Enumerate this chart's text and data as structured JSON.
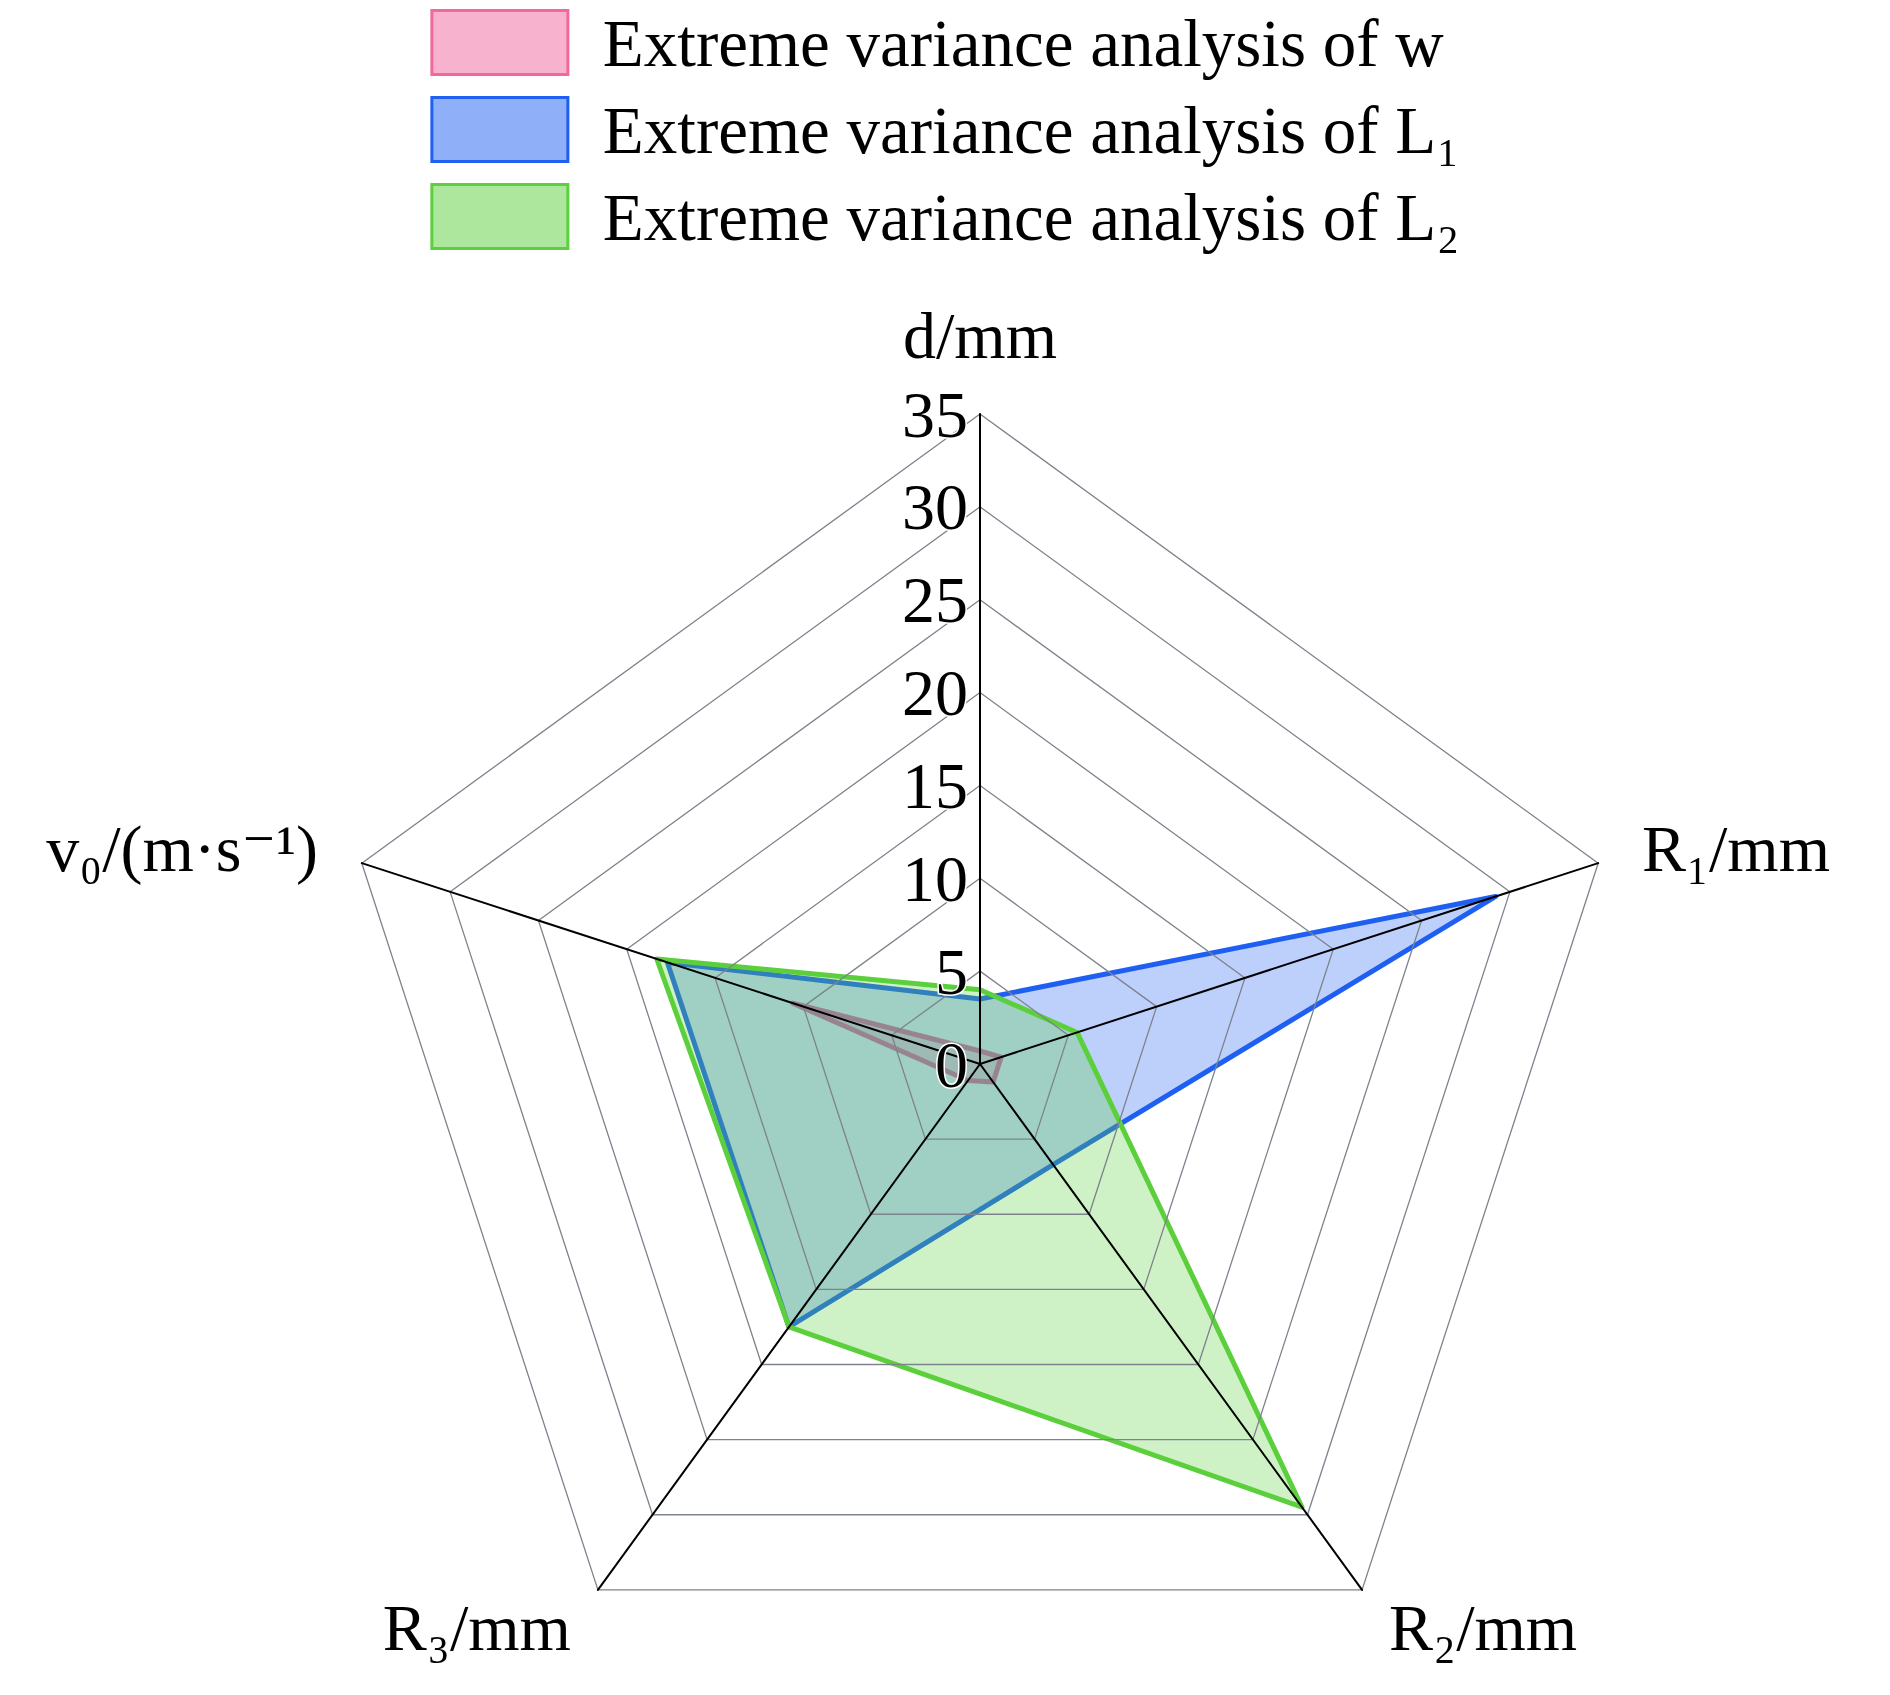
{
  "chart_data": {
    "type": "radar",
    "categories": [
      "d/mm",
      "R₁/mm",
      "R₂/mm",
      "R₃/mm",
      "v₀/(m·s⁻¹)"
    ],
    "series": [
      {
        "name": "Extreme variance analysis of w",
        "color": "#f0689c",
        "values": [
          0.7,
          1.2,
          1.2,
          1.1,
          10.6
        ]
      },
      {
        "name": "Extreme variance analysis of L₁",
        "color": "#1f60f2",
        "values": [
          3.5,
          29.2,
          6.7,
          17.5,
          17.7
        ]
      },
      {
        "name": "Extreme variance analysis of L₂",
        "color": "#5ccf3c",
        "values": [
          4,
          5.5,
          29.5,
          17.5,
          18.3
        ]
      }
    ],
    "ylim": [
      0,
      35
    ],
    "yticks": [
      0,
      5,
      10,
      15,
      20,
      25,
      30,
      35
    ],
    "grid": true,
    "legend": "top",
    "marker": "none",
    "line_style": "solid"
  }
}
